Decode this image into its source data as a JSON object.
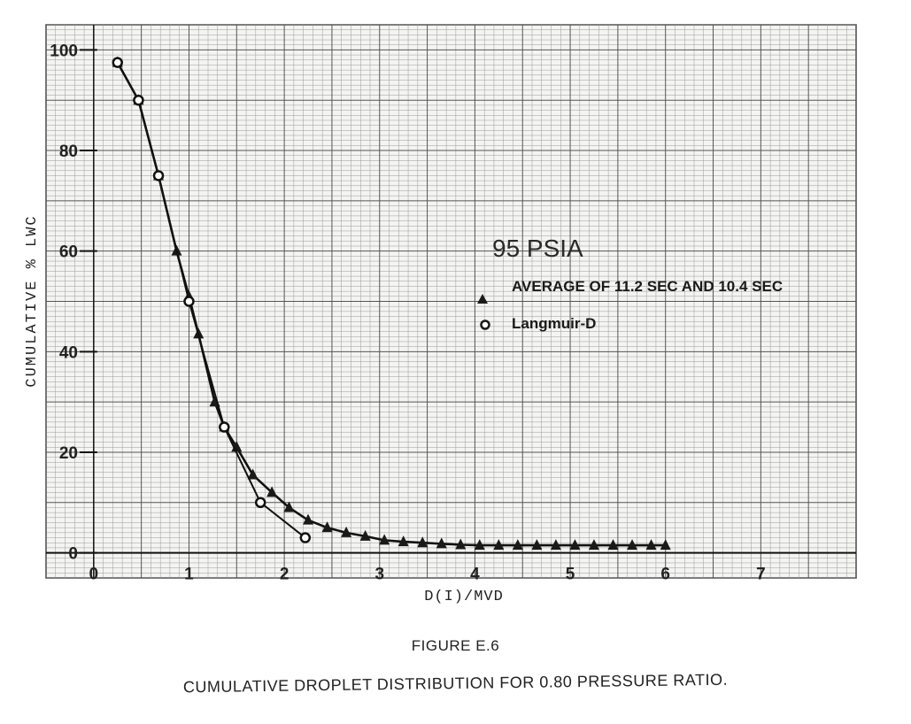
{
  "figure": {
    "label": "FIGURE E.6",
    "caption": "CUMULATIVE DROPLET DISTRIBUTION FOR 0.80 PRESSURE RATIO."
  },
  "chart_data": {
    "type": "line",
    "title": "",
    "xlabel": "D(I)/MVD",
    "ylabel": "CUMULATIVE % LWC",
    "xlim": [
      -0.5,
      8.0
    ],
    "ylim": [
      -5,
      105
    ],
    "x_ticks": [
      0,
      1,
      2,
      3,
      4,
      5,
      6,
      7
    ],
    "x_tick_labels": [
      "0",
      "1",
      "2",
      "3",
      "4",
      "5",
      "6",
      "7"
    ],
    "y_ticks": [
      0,
      20,
      40,
      60,
      80,
      100
    ],
    "y_tick_labels": [
      "0",
      "20",
      "40",
      "60",
      "80",
      "100"
    ],
    "grid": true,
    "annotation": "95 PSIA",
    "legend_position": "right",
    "series": [
      {
        "name": "AVERAGE OF 11.2 SEC AND 10.4 SEC",
        "marker": "triangle",
        "x": [
          0.25,
          0.47,
          0.68,
          0.87,
          1.0,
          1.1,
          1.27,
          1.37,
          1.5,
          1.67,
          1.87,
          2.05,
          2.25,
          2.45,
          2.65,
          2.85,
          3.05,
          3.25,
          3.45,
          3.65,
          3.85,
          4.05,
          4.25,
          4.45,
          4.65,
          4.85,
          5.05,
          5.25,
          5.45,
          5.65,
          5.85,
          6.0
        ],
        "y": [
          97.5,
          90,
          75,
          60,
          51,
          43.5,
          30,
          25,
          21,
          15.5,
          12,
          9,
          6.5,
          5,
          4,
          3.3,
          2.5,
          2.2,
          2.0,
          1.8,
          1.6,
          1.5,
          1.5,
          1.5,
          1.5,
          1.5,
          1.5,
          1.5,
          1.5,
          1.5,
          1.5,
          1.5
        ]
      },
      {
        "name": "Langmuir-D",
        "marker": "circle",
        "x": [
          0.25,
          0.47,
          0.68,
          1.0,
          1.37,
          1.75,
          2.22
        ],
        "y": [
          97.5,
          90,
          75,
          50,
          25,
          10,
          3
        ]
      }
    ]
  }
}
